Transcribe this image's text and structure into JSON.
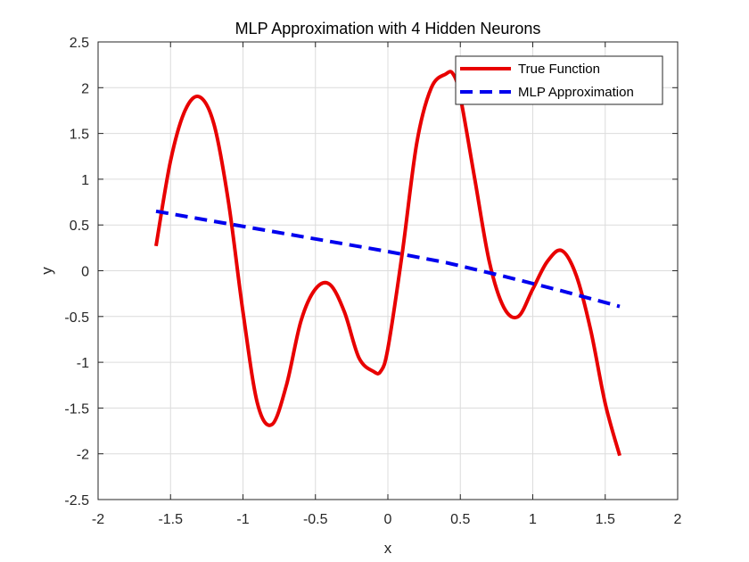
{
  "chart_data": {
    "type": "line",
    "title": "MLP Approximation with 4 Hidden Neurons",
    "xlabel": "x",
    "ylabel": "y",
    "xlim": [
      -2,
      2
    ],
    "ylim": [
      -2.5,
      2.5
    ],
    "xticks": [
      -2,
      -1.5,
      -1,
      -0.5,
      0,
      0.5,
      1,
      1.5,
      2
    ],
    "yticks": [
      -2.5,
      -2,
      -1.5,
      -1,
      -0.5,
      0,
      0.5,
      1,
      1.5,
      2,
      2.5
    ],
    "grid": true,
    "legend_position": "top-right",
    "series": [
      {
        "name": "True Function",
        "color": "#e80000",
        "style": "solid",
        "x": [
          -1.6,
          -1.5,
          -1.4,
          -1.3,
          -1.2,
          -1.1,
          -1.0,
          -0.9,
          -0.8,
          -0.7,
          -0.6,
          -0.5,
          -0.4,
          -0.3,
          -0.2,
          -0.1,
          -0.05,
          0.0,
          0.1,
          0.2,
          0.3,
          0.4,
          0.45,
          0.5,
          0.6,
          0.7,
          0.8,
          0.9,
          1.0,
          1.1,
          1.2,
          1.3,
          1.4,
          1.5,
          1.6
        ],
        "y": [
          0.27,
          1.2,
          1.75,
          1.9,
          1.6,
          0.75,
          -0.45,
          -1.45,
          -1.68,
          -1.25,
          -0.55,
          -0.2,
          -0.15,
          -0.45,
          -0.95,
          -1.1,
          -1.1,
          -0.85,
          0.2,
          1.4,
          2.0,
          2.15,
          2.15,
          1.9,
          1.0,
          0.1,
          -0.4,
          -0.5,
          -0.2,
          0.1,
          0.22,
          -0.05,
          -0.65,
          -1.45,
          -2.02
        ]
      },
      {
        "name": "MLP Approximation",
        "color": "#0000ee",
        "style": "dashed",
        "x": [
          -1.6,
          -1.2,
          -0.8,
          -0.4,
          0.0,
          0.4,
          0.8,
          1.2,
          1.6
        ],
        "y": [
          0.65,
          0.54,
          0.43,
          0.32,
          0.21,
          0.09,
          -0.06,
          -0.22,
          -0.39
        ]
      }
    ]
  }
}
